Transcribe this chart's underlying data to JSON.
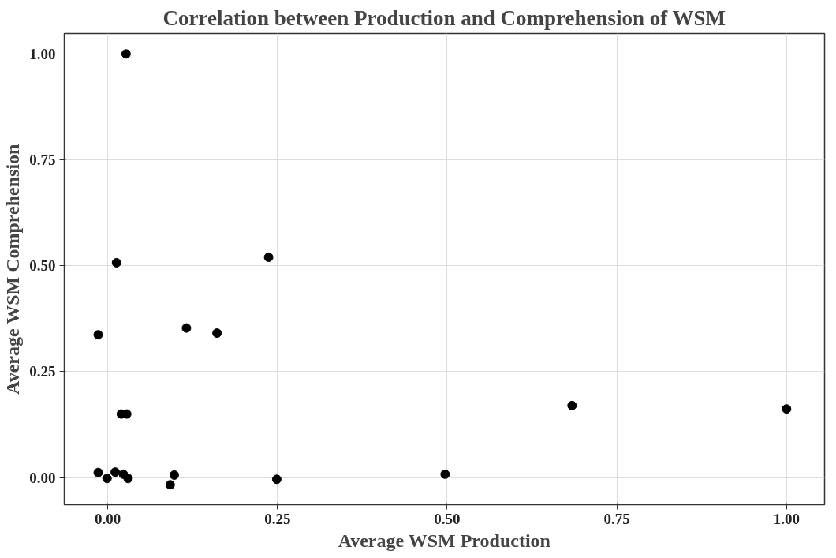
{
  "chart_data": {
    "type": "scatter",
    "title": "Correlation between Production and Comprehension of WSM",
    "xlabel": "Average WSM Production",
    "ylabel": "Average WSM Comprehension",
    "x": [
      0.027,
      0.013,
      0.237,
      -0.014,
      0.116,
      0.161,
      0.02,
      0.028,
      0.684,
      1.0,
      -0.014,
      -0.001,
      0.011,
      0.023,
      0.03,
      0.092,
      0.098,
      0.249,
      0.497
    ],
    "values": [
      1.0,
      0.507,
      0.52,
      0.337,
      0.353,
      0.341,
      0.15,
      0.15,
      0.17,
      0.162,
      0.012,
      -0.002,
      0.013,
      0.008,
      -0.002,
      -0.017,
      0.006,
      -0.004,
      0.008
    ],
    "color": "#000000",
    "marker": "circle",
    "grid": true,
    "xlim": [
      -0.064,
      1.056
    ],
    "ylim": [
      -0.064,
      1.048
    ],
    "xticks": [
      {
        "value": 0,
        "label": "0.00"
      },
      {
        "value": 0.25,
        "label": "0.25"
      },
      {
        "value": 0.5,
        "label": "0.50"
      },
      {
        "value": 0.75,
        "label": "0.75"
      },
      {
        "value": 1,
        "label": "1.00"
      }
    ],
    "yticks": [
      {
        "value": 0,
        "label": "0.00"
      },
      {
        "value": 0.25,
        "label": "0.25"
      },
      {
        "value": 0.5,
        "label": "0.50"
      },
      {
        "value": 0.75,
        "label": "0.75"
      },
      {
        "value": 1,
        "label": "1.00"
      }
    ]
  }
}
